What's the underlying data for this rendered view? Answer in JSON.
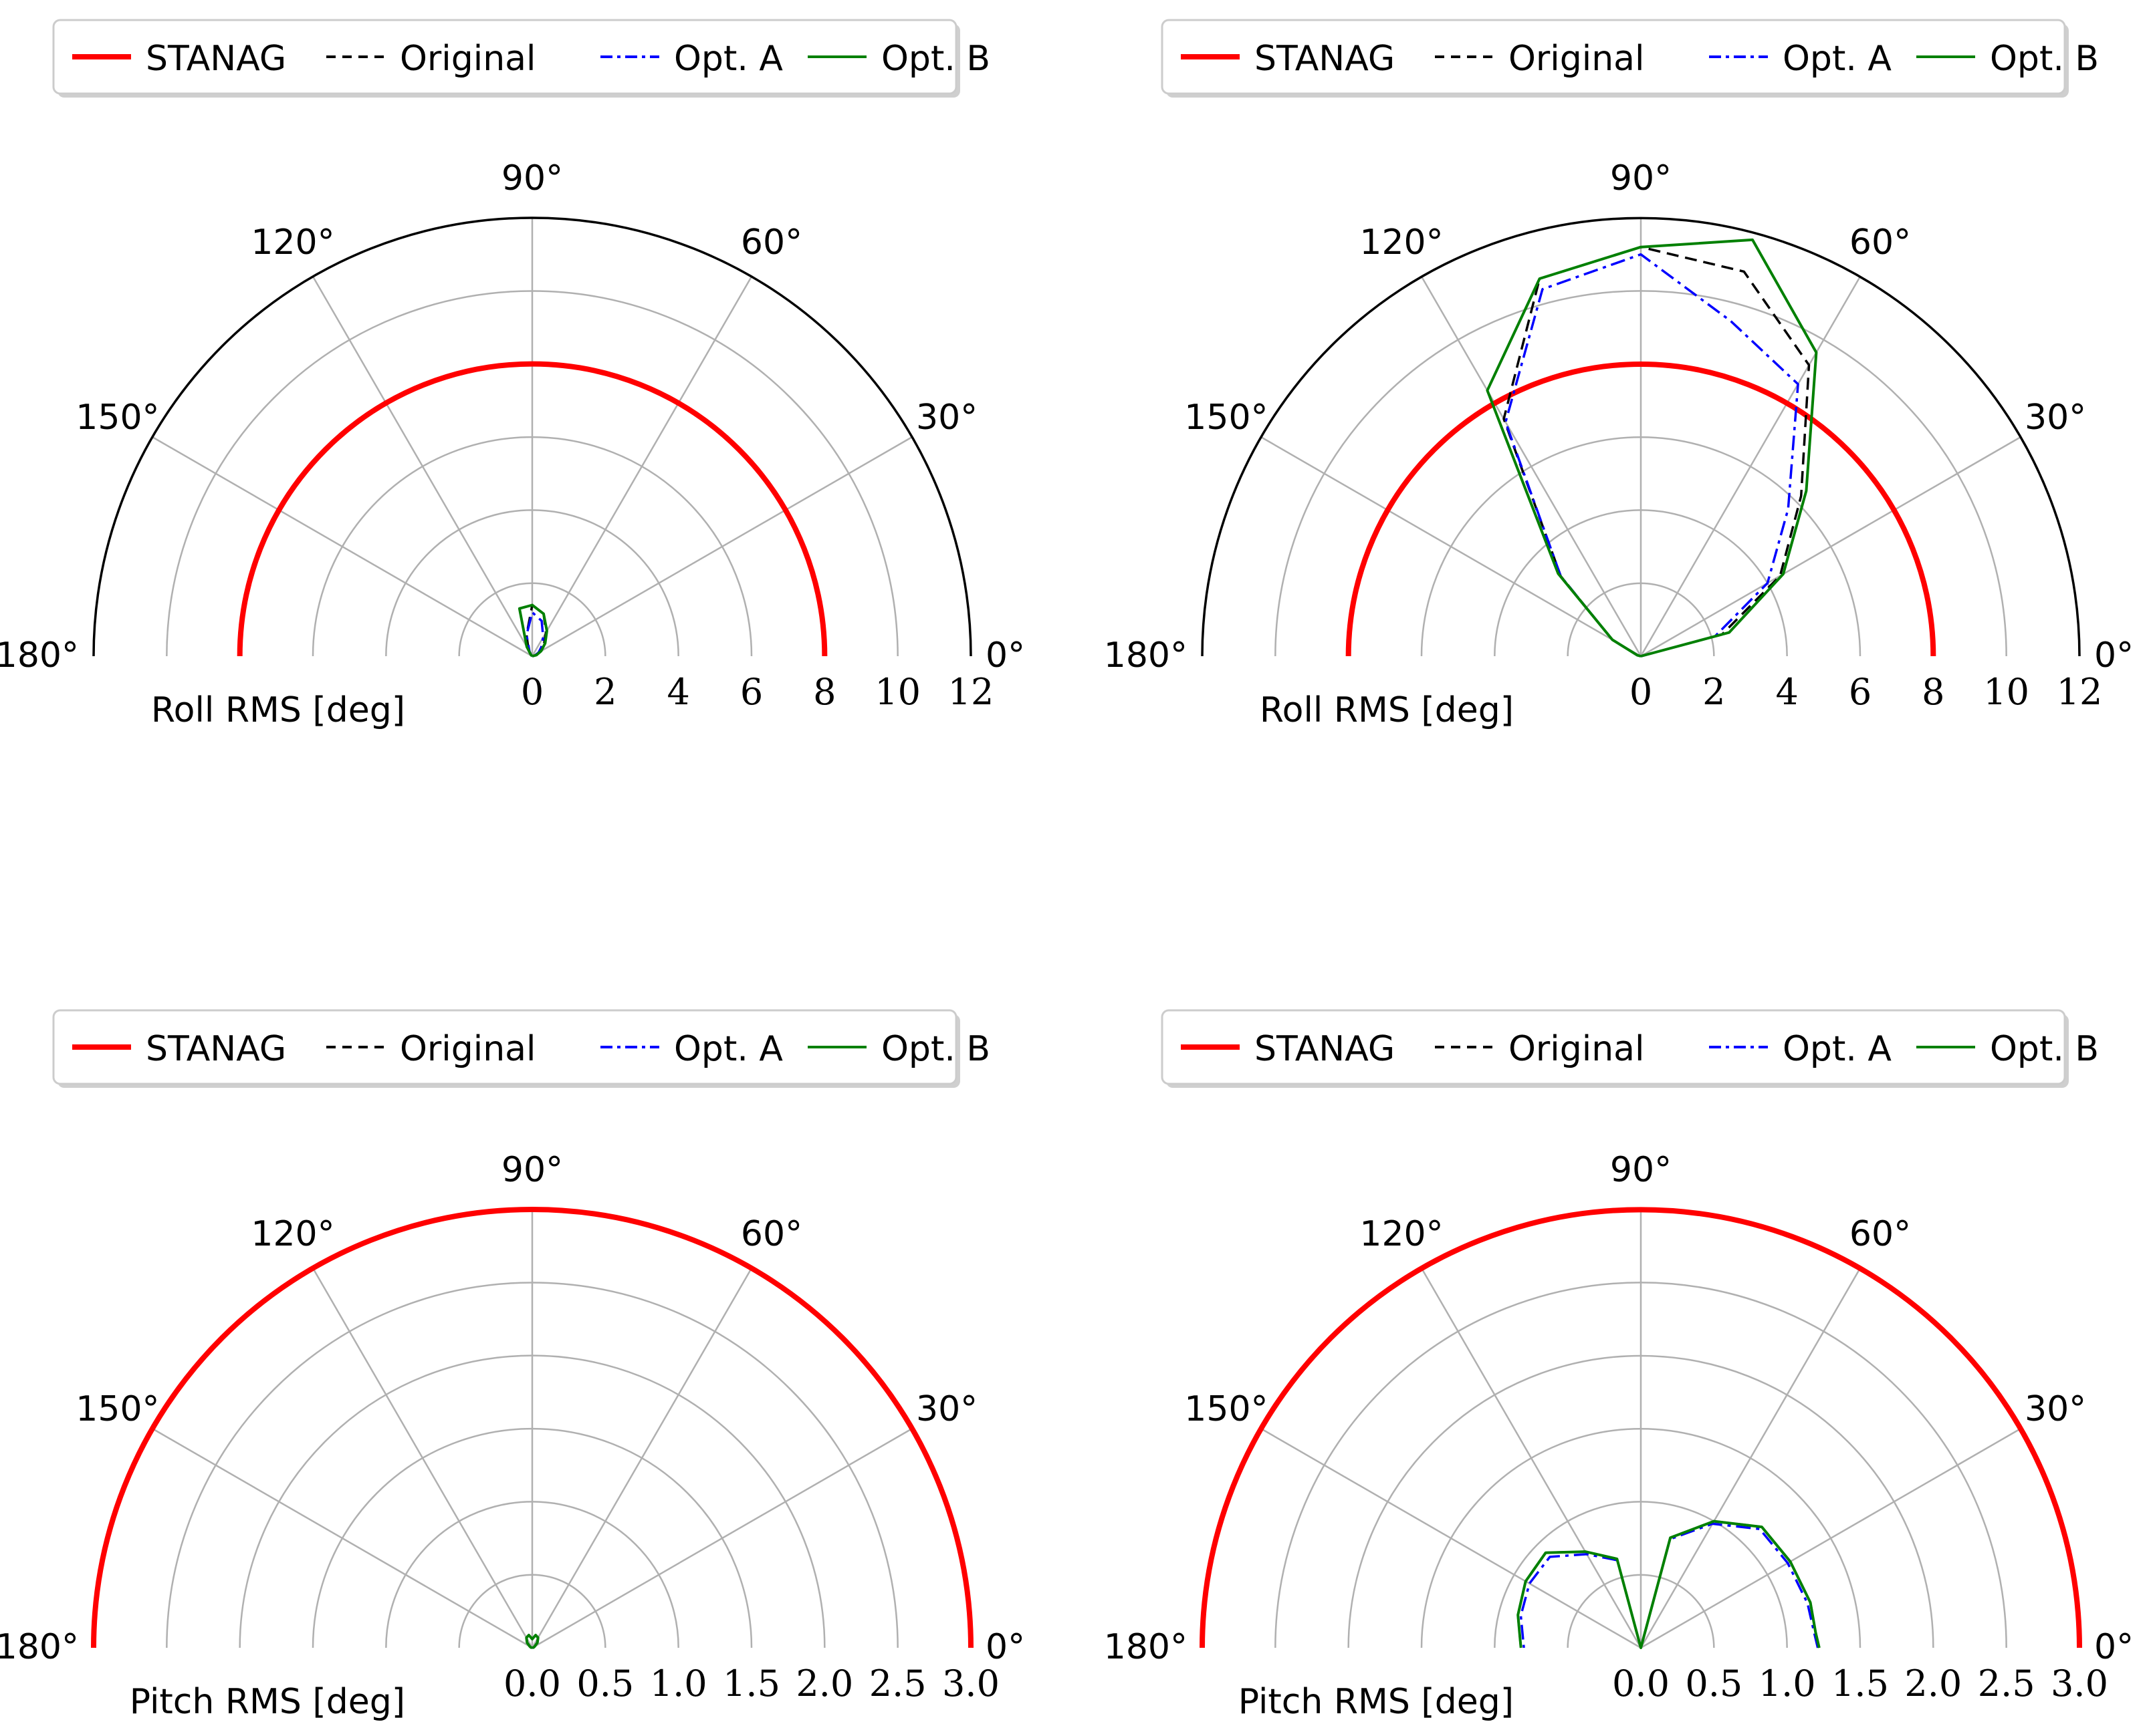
{
  "colors": {
    "STANAG": "#ff0000",
    "Original": "#000000",
    "Opt. A": "#0000ff",
    "Opt. B": "#008000",
    "grid": "#b0b0b0"
  },
  "chart_data": [
    {
      "type": "polar-half",
      "legend": [
        "STANAG",
        "Original",
        "Opt. A",
        "Opt. B"
      ],
      "xlabel": "Roll RMS [deg]",
      "rmax": 12,
      "rticks": [
        "0",
        "2",
        "4",
        "6",
        "8",
        "10",
        "12"
      ],
      "angle_labels": [
        "0°",
        "30°",
        "60°",
        "90°",
        "120°",
        "150°",
        "180°"
      ],
      "stanag_limit": 8,
      "angles_deg": [
        0,
        15,
        30,
        45,
        60,
        75,
        90,
        105,
        120,
        135,
        150,
        165,
        180
      ],
      "series": [
        {
          "name": "Original",
          "values": [
            0.0,
            0.1,
            0.25,
            0.45,
            0.75,
            1.2,
            1.4,
            0.6,
            0.2,
            0.05,
            0.0,
            0.0,
            0.0
          ]
        },
        {
          "name": "Opt. A",
          "values": [
            0.0,
            0.08,
            0.2,
            0.35,
            0.6,
            1.0,
            1.2,
            0.6,
            0.15,
            0.04,
            0.0,
            0.0,
            0.0
          ]
        },
        {
          "name": "Opt. B",
          "values": [
            0.0,
            0.12,
            0.28,
            0.5,
            0.8,
            1.2,
            1.4,
            1.35,
            0.3,
            0.05,
            0.0,
            0.0,
            0.0
          ]
        }
      ]
    },
    {
      "type": "polar-half",
      "legend": [
        "STANAG",
        "Original",
        "Opt. A",
        "Opt. B"
      ],
      "xlabel": "Roll RMS [deg]",
      "rmax": 12,
      "rticks": [
        "0",
        "2",
        "4",
        "6",
        "8",
        "10",
        "12"
      ],
      "angle_labels": [
        "0°",
        "30°",
        "60°",
        "90°",
        "120°",
        "150°",
        "180°"
      ],
      "stanag_limit": 8,
      "angles_deg": [
        0,
        15,
        30,
        45,
        60,
        75,
        90,
        105,
        120,
        135,
        150,
        165,
        180
      ],
      "series": [
        {
          "name": "Original",
          "values": [
            0.0,
            2.3,
            4.4,
            6.2,
            9.2,
            10.9,
            11.2,
            10.7,
            7.5,
            3.1,
            0.9,
            0.1,
            0.0
          ]
        },
        {
          "name": "Opt. A",
          "values": [
            0.0,
            2.1,
            4.0,
            5.7,
            8.6,
            9.5,
            11.0,
            10.4,
            7.4,
            3.1,
            0.9,
            0.1,
            0.0
          ]
        },
        {
          "name": "Opt. B",
          "values": [
            0.0,
            2.5,
            4.5,
            6.4,
            9.6,
            11.8,
            11.2,
            10.7,
            8.4,
            3.2,
            0.9,
            0.1,
            0.0
          ]
        }
      ]
    },
    {
      "type": "polar-half",
      "legend": [
        "STANAG",
        "Original",
        "Opt. A",
        "Opt. B"
      ],
      "xlabel": "Pitch RMS [deg]",
      "rmax": 3.0,
      "rticks": [
        "0.0",
        "0.5",
        "1.0",
        "1.5",
        "2.0",
        "2.5",
        "3.0"
      ],
      "angle_labels": [
        "0°",
        "30°",
        "60°",
        "90°",
        "120°",
        "150°",
        "180°"
      ],
      "stanag_limit": 3.0,
      "angles_deg": [
        0,
        15,
        30,
        45,
        60,
        75,
        90,
        105,
        120,
        135,
        150,
        165,
        180
      ],
      "series": [
        {
          "name": "Original",
          "values": [
            0.0,
            0.01,
            0.02,
            0.05,
            0.08,
            0.09,
            0.06,
            0.09,
            0.08,
            0.05,
            0.02,
            0.01,
            0.0
          ]
        },
        {
          "name": "Opt. A",
          "values": [
            0.0,
            0.01,
            0.02,
            0.05,
            0.08,
            0.09,
            0.06,
            0.09,
            0.08,
            0.05,
            0.02,
            0.01,
            0.0
          ]
        },
        {
          "name": "Opt. B",
          "values": [
            0.0,
            0.01,
            0.02,
            0.05,
            0.08,
            0.09,
            0.06,
            0.09,
            0.08,
            0.05,
            0.02,
            0.01,
            0.0
          ]
        }
      ]
    },
    {
      "type": "polar-half",
      "legend": [
        "STANAG",
        "Original",
        "Opt. A",
        "Opt. B"
      ],
      "xlabel": "Pitch RMS [deg]",
      "rmax": 3.0,
      "rticks": [
        "0.0",
        "0.5",
        "1.0",
        "1.5",
        "2.0",
        "2.5",
        "3.0"
      ],
      "angle_labels": [
        "0°",
        "30°",
        "60°",
        "90°",
        "120°",
        "150°",
        "180°"
      ],
      "stanag_limit": 3.0,
      "angles_deg": [
        0,
        5,
        15,
        30,
        45,
        60,
        75,
        90,
        105,
        120,
        135,
        150,
        165,
        175,
        180
      ],
      "series": [
        {
          "name": "Original",
          "values": [
            1.22,
            1.2,
            1.2,
            1.18,
            1.17,
            1.0,
            0.78,
            0.0,
            0.63,
            0.76,
            0.92,
            0.91,
            0.87,
            0.83,
            0.82
          ]
        },
        {
          "name": "Opt. A",
          "values": [
            1.21,
            1.19,
            1.18,
            1.16,
            1.15,
            0.98,
            0.77,
            0.0,
            0.62,
            0.74,
            0.88,
            0.88,
            0.85,
            0.81,
            0.8
          ]
        },
        {
          "name": "Opt. B",
          "values": [
            1.22,
            1.2,
            1.2,
            1.18,
            1.17,
            1.0,
            0.78,
            0.0,
            0.63,
            0.76,
            0.92,
            0.91,
            0.87,
            0.83,
            0.82
          ]
        }
      ]
    }
  ]
}
